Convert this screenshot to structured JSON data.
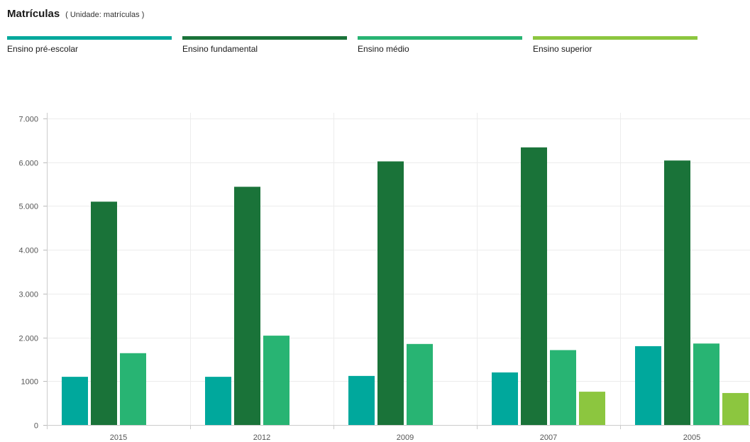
{
  "header": {
    "title": "Matrículas",
    "unit": "( Unidade: matrículas )"
  },
  "chart_data": {
    "type": "bar",
    "categories": [
      "2015",
      "2012",
      "2009",
      "2007",
      "2005"
    ],
    "series": [
      {
        "name": "Ensino pré-escolar",
        "color": "#00a89c",
        "values": [
          1100,
          1100,
          1120,
          1200,
          1800
        ]
      },
      {
        "name": "Ensino fundamental",
        "color": "#1a7339",
        "values": [
          5100,
          5440,
          6020,
          6340,
          6040
        ]
      },
      {
        "name": "Ensino médio",
        "color": "#28b473",
        "values": [
          1640,
          2040,
          1850,
          1710,
          1860
        ]
      },
      {
        "name": "Ensino superior",
        "color": "#8cc63f",
        "values": [
          null,
          null,
          null,
          760,
          730
        ]
      }
    ],
    "yticks": [
      {
        "value": 0,
        "label": "0"
      },
      {
        "value": 1000,
        "label": "1000"
      },
      {
        "value": 2000,
        "label": "2.000"
      },
      {
        "value": 3000,
        "label": "3.000"
      },
      {
        "value": 4000,
        "label": "4.000"
      },
      {
        "value": 5000,
        "label": "5.000"
      },
      {
        "value": 6000,
        "label": "6.000"
      },
      {
        "value": 7000,
        "label": "7.000"
      }
    ],
    "ylim": [
      0,
      7000
    ],
    "grid": true,
    "legend_position": "top"
  }
}
